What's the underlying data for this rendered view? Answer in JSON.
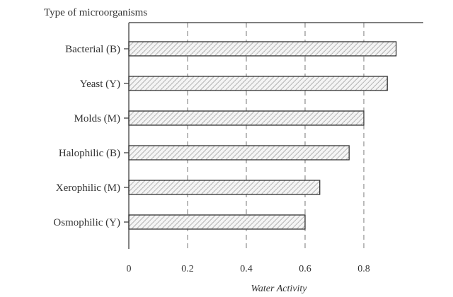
{
  "chart_data": {
    "type": "bar",
    "orientation": "horizontal",
    "title": "Type of microorganisms",
    "xlabel": "Water Activity",
    "ylabel": "",
    "categories": [
      "Bacterial (B)",
      "Yeast (Y)",
      "Molds (M)",
      "Halophilic (B)",
      "Xerophilic (M)",
      "Osmophilic (Y)"
    ],
    "values": [
      0.91,
      0.88,
      0.8,
      0.75,
      0.65,
      0.6
    ],
    "xlim": [
      0,
      1.0
    ],
    "xticks": [
      0,
      0.2,
      0.4,
      0.6,
      0.8
    ],
    "xtick_labels": [
      "0",
      "0.2",
      "0.4",
      "0.6",
      "0.8"
    ],
    "grid": "vertical-dashed",
    "bar_fill": "hatched",
    "colors": {
      "ink": "#333333",
      "hatch": "#8a8a8a",
      "grid": "#777777"
    }
  }
}
